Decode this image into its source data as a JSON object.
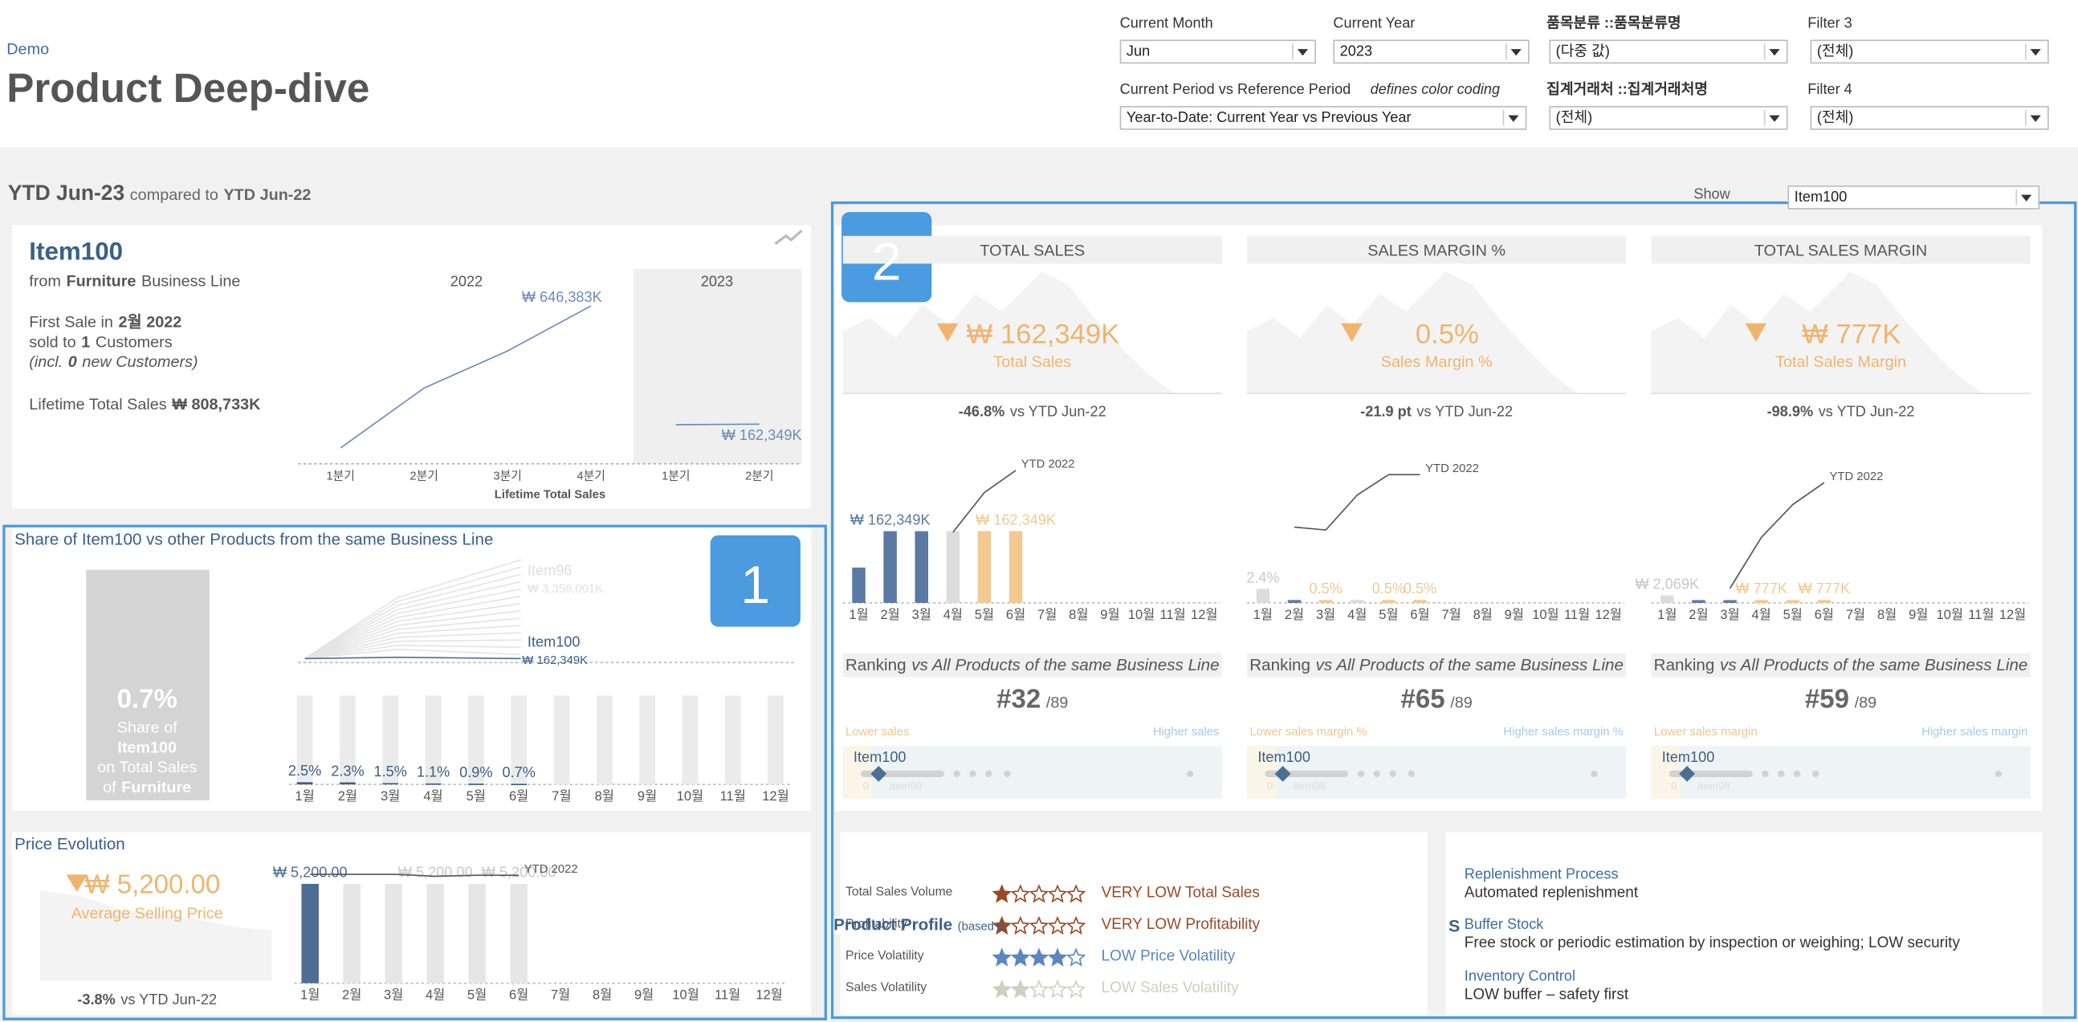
{
  "header": {
    "breadcrumb": "Demo",
    "title": "Product Deep-dive"
  },
  "filters": [
    {
      "label": "Current Month",
      "value": "Jun"
    },
    {
      "label": "Current Year",
      "value": "2023"
    },
    {
      "label": "품목분류 ::품목분류명",
      "value": "(다중 값)"
    },
    {
      "label": "Filter 3",
      "value": "(전체)"
    },
    {
      "label": "Current Period vs Reference Period",
      "note": "defines color coding",
      "value": "Year-to-Date: Current Year vs Previous Year"
    },
    {
      "label": "집계거래처 ::집계거래처명",
      "value": "(전체)"
    },
    {
      "label": "Filter 4",
      "value": "(전체)"
    }
  ],
  "period": {
    "current": "YTD Jun-23",
    "connector": "compared to",
    "reference": "YTD Jun-22",
    "show_label": "Show",
    "show_value": "Item100"
  },
  "item_card": {
    "name": "Item100",
    "from_prefix": "from",
    "business_line": "Furniture",
    "from_suffix": "Business Line",
    "first_sale_prefix": "First Sale in",
    "first_sale": "2월 2022",
    "sold_to_prefix": "sold to",
    "customers": "1",
    "customers_suffix": "Customers",
    "incl_prefix": "(incl.",
    "new_customers": "0",
    "incl_suffix": "new Customers)",
    "lifetime_prefix": "Lifetime Total Sales",
    "lifetime_value": "₩ 808,733K",
    "chart": {
      "type": "line",
      "categories": [
        "1분기",
        "2분기",
        "3분기",
        "4분기",
        "1분기",
        "2분기"
      ],
      "series": [
        {
          "name": "2022",
          "color": "#6b8cb8",
          "values": [
            65000,
            310000,
            462000,
            646383,
            null,
            null
          ],
          "value_labels": [
            null,
            null,
            null,
            "₩ 646,383K",
            null,
            null
          ]
        },
        {
          "name": "2023",
          "color": "#6b8cb8",
          "values": [
            null,
            null,
            null,
            null,
            160000,
            162349
          ],
          "value_labels": [
            null,
            null,
            null,
            null,
            null,
            "₩ 162,349K"
          ]
        }
      ],
      "x_title": "Lifetime Total Sales",
      "ylim": [
        0,
        700000
      ]
    }
  },
  "badges": [
    "1",
    "2"
  ],
  "share": {
    "title": "Share of Item100 vs other Products from the same Business Line",
    "share_value": "0.7%",
    "share_line1": "Share of",
    "share_item": "Item100",
    "share_line3": "on Total Sales",
    "share_of": "of",
    "share_line": "Furniture",
    "trend": {
      "top_name": "Item96",
      "top_value": "₩ 3,356,001K",
      "item_name": "Item100",
      "item_value": "₩ 162,349K"
    },
    "chart": {
      "type": "bar",
      "categories": [
        "1월",
        "2월",
        "3월",
        "4월",
        "5월",
        "6월",
        "7월",
        "8월",
        "9월",
        "10월",
        "11월",
        "12월"
      ],
      "values": [
        2.5,
        2.3,
        1.5,
        1.1,
        0.9,
        0.7,
        null,
        null,
        null,
        null,
        null,
        null
      ],
      "value_labels": [
        "2.5%",
        "2.3%",
        "1.5%",
        "1.1%",
        "0.9%",
        "0.7%",
        null,
        null,
        null,
        null,
        null,
        null
      ],
      "colors": [
        "#3a5f8a",
        "#3a5f8a",
        "#3a5f8a",
        "#3a5f8a",
        "#3a5f8a",
        "#3a5f8a",
        "#3a5f8a",
        "#3a5f8a",
        "#3a5f8a",
        "#3a5f8a",
        "#3a5f8a",
        "#3a5f8a"
      ],
      "ylim": [
        0,
        100
      ]
    }
  },
  "price": {
    "title": "Price Evolution",
    "value": "₩ 5,200.00",
    "label": "Average Selling Price",
    "delta": "-3.8%",
    "vs": "vs YTD Jun-22",
    "chart": {
      "type": "bar",
      "categories": [
        "1월",
        "2월",
        "3월",
        "4월",
        "5월",
        "6월",
        "7월",
        "8월",
        "9월",
        "10월",
        "11월",
        "12월"
      ],
      "values": [
        5200,
        5200,
        5200,
        5200,
        5200,
        5200,
        null,
        null,
        null,
        null,
        null,
        null
      ],
      "value_labels": [
        "₩ 5,200.00",
        null,
        null,
        "₩ 5,200.00",
        null,
        "₩ 5,200.00",
        null,
        null,
        null,
        null,
        null,
        null
      ],
      "colors": [
        "#4e6d94",
        "#e6e6e6",
        "#e6e6e6",
        "#e6e6e6",
        "#e6e6e6",
        "#e6e6e6",
        "#e6e6e6",
        "#e6e6e6",
        "#e6e6e6",
        "#e6e6e6",
        "#e6e6e6",
        "#e6e6e6"
      ],
      "ytd": {
        "name": "YTD 2022",
        "values": [
          5700,
          5700,
          5700,
          5600,
          5650,
          5650,
          null,
          null,
          null,
          null,
          null,
          null
        ]
      },
      "ylim": [
        0,
        6000
      ]
    }
  },
  "kpis": [
    {
      "title": "TOTAL SALES",
      "value": "₩ 162,349K",
      "label": "Total Sales",
      "delta": "-46.8%",
      "vs": "vs YTD Jun-22",
      "chart": {
        "type": "bar",
        "categories": [
          "1월",
          "2월",
          "3월",
          "4월",
          "5월",
          "6월",
          "7월",
          "8월",
          "9월",
          "10월",
          "11월",
          "12월"
        ],
        "values": [
          80000,
          162349,
          162349,
          162349,
          162349,
          162349,
          null,
          null,
          null,
          null,
          null,
          null
        ],
        "value_labels": [
          null,
          "₩ 162,349K",
          null,
          null,
          null,
          "₩ 162,349K",
          null,
          null,
          null,
          null,
          null,
          null
        ],
        "colors": [
          "#5b7aa3",
          "#5b7aa3",
          "#5b7aa3",
          "#dcdcdc",
          "#f2c990",
          "#f2c990",
          "#dcdcdc",
          "#dcdcdc",
          "#dcdcdc",
          "#dcdcdc",
          "#dcdcdc",
          "#dcdcdc"
        ],
        "ytd": {
          "name": "YTD 2022",
          "values": [
            null,
            null,
            null,
            160000,
            250000,
            300000,
            null,
            null,
            null,
            null,
            null,
            null
          ]
        },
        "ylim": [
          0,
          330000
        ]
      },
      "ranking": {
        "prefix": "Ranking",
        "suffix": "vs All Products of the same Business Line",
        "rank": "#32",
        "total": "/89",
        "low": "Lower sales",
        "high": "Higher sales",
        "item": "Item100",
        "min": "0",
        "max_item": "Item98"
      }
    },
    {
      "title": "SALES MARGIN %",
      "value": "0.5%",
      "label": "Sales Margin %",
      "delta": "-21.9 pt",
      "vs": "vs YTD Jun-22",
      "chart": {
        "type": "bar",
        "categories": [
          "1월",
          "2월",
          "3월",
          "4월",
          "5월",
          "6월",
          "7월",
          "8월",
          "9월",
          "10월",
          "11월",
          "12월"
        ],
        "values": [
          2.4,
          0.5,
          0.5,
          0.5,
          0.5,
          0.5,
          null,
          null,
          null,
          null,
          null,
          null
        ],
        "value_labels": [
          "2.4%",
          null,
          "0.5%",
          null,
          "0.5%",
          "0.5%",
          null,
          null,
          null,
          null,
          null,
          null
        ],
        "colors": [
          "#dcdcdc",
          "#5b7aa3",
          "#f2c990",
          "#dcdcdc",
          "#f2c990",
          "#f2c990",
          "#dcdcdc",
          "#dcdcdc",
          "#dcdcdc",
          "#dcdcdc",
          "#dcdcdc",
          "#dcdcdc"
        ],
        "ytd": {
          "name": "YTD 2022",
          "values": [
            null,
            13,
            12.5,
            18.5,
            22,
            22,
            null,
            null,
            null,
            null,
            null,
            null
          ]
        },
        "ylim": [
          0,
          25
        ]
      },
      "ranking": {
        "prefix": "Ranking",
        "suffix": "vs All Products of the same Business Line",
        "rank": "#65",
        "total": "/89",
        "low": "Lower sales margin %",
        "high": "Higher sales margin %",
        "item": "Item100",
        "min": "0",
        "max_item": "Item98"
      }
    },
    {
      "title": "TOTAL SALES MARGIN",
      "value": "₩ 777K",
      "label": "Total Sales Margin",
      "delta": "-98.9%",
      "vs": "vs YTD Jun-22",
      "chart": {
        "type": "bar",
        "categories": [
          "1월",
          "2월",
          "3월",
          "4월",
          "5월",
          "6월",
          "7월",
          "8월",
          "9월",
          "10월",
          "11월",
          "12월"
        ],
        "values": [
          2069,
          777,
          777,
          777,
          777,
          777,
          null,
          null,
          null,
          null,
          null,
          null
        ],
        "value_labels": [
          "₩ 2,069K",
          null,
          null,
          "₩ 777K",
          null,
          "₩ 777K",
          null,
          null,
          null,
          null,
          null,
          null
        ],
        "colors": [
          "#dcdcdc",
          "#5b7aa3",
          "#5b7aa3",
          "#f2c990",
          "#f2c990",
          "#f2c990",
          "#dcdcdc",
          "#dcdcdc",
          "#dcdcdc",
          "#dcdcdc",
          "#dcdcdc",
          "#dcdcdc"
        ],
        "ytd": {
          "name": "YTD 2022",
          "values": [
            null,
            null,
            4000,
            18000,
            27000,
            33000,
            null,
            null,
            null,
            null,
            null,
            null
          ]
        },
        "ylim": [
          0,
          40000
        ]
      },
      "ranking": {
        "prefix": "Ranking",
        "suffix": "vs All Products of the same Business Line",
        "rank": "#59",
        "total": "/89",
        "low": "Lower sales margin",
        "high": "Higher sales margin",
        "item": "Item100",
        "min": "0",
        "max_item": "Item98"
      }
    }
  ],
  "profile": {
    "title": "Product Profile",
    "subtitle": "(based o",
    "max_stars": 5,
    "rows": [
      {
        "metric": "Total Sales Volume",
        "stars": 1,
        "text": "VERY LOW Total Sales",
        "color": "#9a4a26"
      },
      {
        "metric": "Profitability",
        "stars": 1,
        "text": "VERY LOW Profitability",
        "color": "#9a4a26"
      },
      {
        "metric": "Price Volatility",
        "stars": 4,
        "text": "LOW Price Volatility",
        "color": "#5b87c0"
      },
      {
        "metric": "Sales Volatility",
        "stars": 2,
        "text": "LOW Sales Volatility",
        "color": "#cfcfbf"
      }
    ]
  },
  "replenishment": {
    "letter": "S",
    "items": [
      {
        "title": "Replenishment Process",
        "text": "Automated replenishment"
      },
      {
        "title": "Buffer Stock",
        "text": "Free stock or periodic estimation by inspection or weighing; LOW security"
      },
      {
        "title": "Inventory Control",
        "text": "LOW buffer – safety first"
      }
    ]
  }
}
